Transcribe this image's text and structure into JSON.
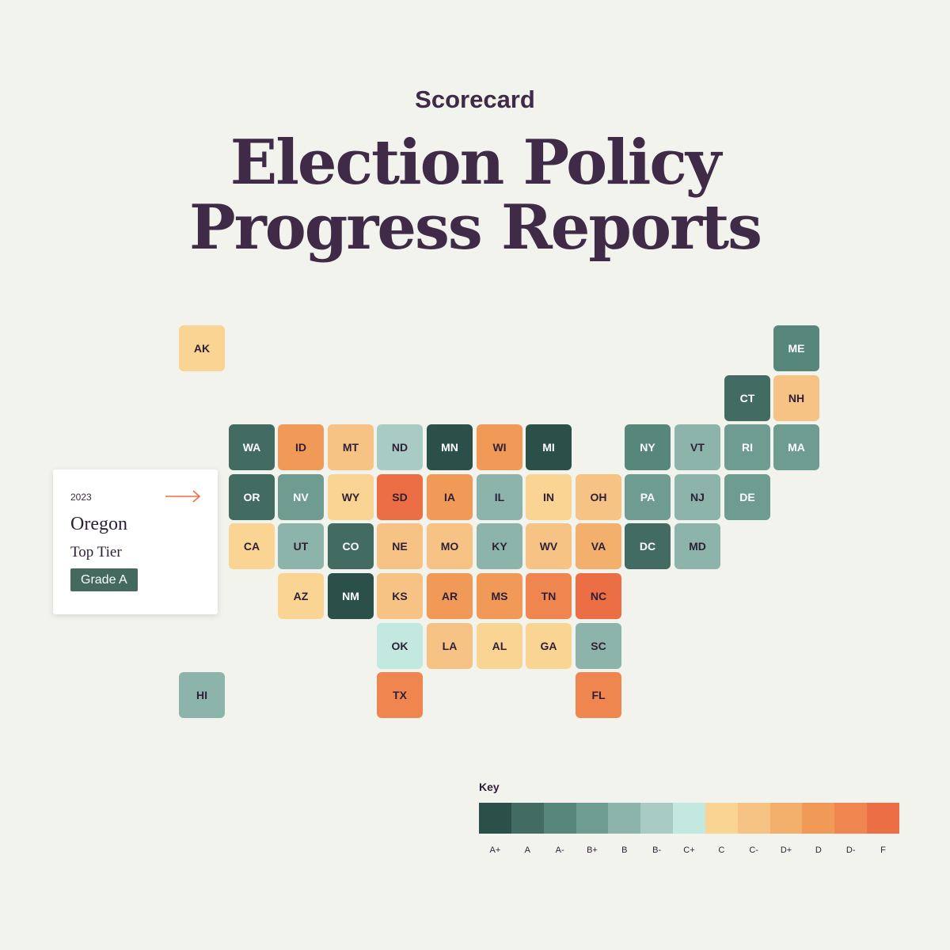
{
  "header": {
    "kicker": "Scorecard",
    "title_line1": "Election Policy",
    "title_line2": "Progress Reports"
  },
  "grade_colors": {
    "A+": "#2a5049",
    "A": "#426c62",
    "A-": "#57867a",
    "B+": "#6f9c90",
    "B": "#8cb4aa",
    "B-": "#a8ccc4",
    "C+": "#c2e8df",
    "C": "#f9d493",
    "C-": "#f6c384",
    "D+": "#f3b06c",
    "D": "#f19a57",
    "D-": "#ef8650",
    "F": "#ec6e45"
  },
  "states": [
    {
      "abbr": "AK",
      "grade": "C",
      "col": 0,
      "row": 0
    },
    {
      "abbr": "ME",
      "grade": "A-",
      "col": 12,
      "row": 0
    },
    {
      "abbr": "CT",
      "grade": "A",
      "col": 11,
      "row": 1
    },
    {
      "abbr": "NH",
      "grade": "C-",
      "col": 12,
      "row": 1
    },
    {
      "abbr": "WA",
      "grade": "A",
      "col": 1,
      "row": 2
    },
    {
      "abbr": "ID",
      "grade": "D",
      "col": 2,
      "row": 2
    },
    {
      "abbr": "MT",
      "grade": "C-",
      "col": 3,
      "row": 2
    },
    {
      "abbr": "ND",
      "grade": "B-",
      "col": 4,
      "row": 2
    },
    {
      "abbr": "MN",
      "grade": "A+",
      "col": 5,
      "row": 2
    },
    {
      "abbr": "WI",
      "grade": "D",
      "col": 6,
      "row": 2
    },
    {
      "abbr": "MI",
      "grade": "A+",
      "col": 7,
      "row": 2
    },
    {
      "abbr": "NY",
      "grade": "A-",
      "col": 9,
      "row": 2
    },
    {
      "abbr": "VT",
      "grade": "B",
      "col": 10,
      "row": 2
    },
    {
      "abbr": "RI",
      "grade": "B+",
      "col": 11,
      "row": 2
    },
    {
      "abbr": "MA",
      "grade": "B+",
      "col": 12,
      "row": 2
    },
    {
      "abbr": "OR",
      "grade": "A",
      "col": 1,
      "row": 3
    },
    {
      "abbr": "NV",
      "grade": "B+",
      "col": 2,
      "row": 3
    },
    {
      "abbr": "WY",
      "grade": "C",
      "col": 3,
      "row": 3
    },
    {
      "abbr": "SD",
      "grade": "F",
      "col": 4,
      "row": 3
    },
    {
      "abbr": "IA",
      "grade": "D",
      "col": 5,
      "row": 3
    },
    {
      "abbr": "IL",
      "grade": "B",
      "col": 6,
      "row": 3
    },
    {
      "abbr": "IN",
      "grade": "C",
      "col": 7,
      "row": 3
    },
    {
      "abbr": "OH",
      "grade": "C-",
      "col": 8,
      "row": 3
    },
    {
      "abbr": "PA",
      "grade": "B+",
      "col": 9,
      "row": 3
    },
    {
      "abbr": "NJ",
      "grade": "B",
      "col": 10,
      "row": 3
    },
    {
      "abbr": "DE",
      "grade": "B+",
      "col": 11,
      "row": 3
    },
    {
      "abbr": "CA",
      "grade": "C",
      "col": 1,
      "row": 4
    },
    {
      "abbr": "UT",
      "grade": "B",
      "col": 2,
      "row": 4
    },
    {
      "abbr": "CO",
      "grade": "A",
      "col": 3,
      "row": 4
    },
    {
      "abbr": "NE",
      "grade": "C-",
      "col": 4,
      "row": 4
    },
    {
      "abbr": "MO",
      "grade": "C-",
      "col": 5,
      "row": 4
    },
    {
      "abbr": "KY",
      "grade": "B",
      "col": 6,
      "row": 4
    },
    {
      "abbr": "WV",
      "grade": "C-",
      "col": 7,
      "row": 4
    },
    {
      "abbr": "VA",
      "grade": "D+",
      "col": 8,
      "row": 4
    },
    {
      "abbr": "DC",
      "grade": "A",
      "col": 9,
      "row": 4
    },
    {
      "abbr": "MD",
      "grade": "B",
      "col": 10,
      "row": 4
    },
    {
      "abbr": "AZ",
      "grade": "C",
      "col": 2,
      "row": 5
    },
    {
      "abbr": "NM",
      "grade": "A+",
      "col": 3,
      "row": 5
    },
    {
      "abbr": "KS",
      "grade": "C-",
      "col": 4,
      "row": 5
    },
    {
      "abbr": "AR",
      "grade": "D",
      "col": 5,
      "row": 5
    },
    {
      "abbr": "MS",
      "grade": "D",
      "col": 6,
      "row": 5
    },
    {
      "abbr": "TN",
      "grade": "D-",
      "col": 7,
      "row": 5
    },
    {
      "abbr": "NC",
      "grade": "F",
      "col": 8,
      "row": 5
    },
    {
      "abbr": "OK",
      "grade": "C+",
      "col": 4,
      "row": 6
    },
    {
      "abbr": "LA",
      "grade": "C-",
      "col": 5,
      "row": 6
    },
    {
      "abbr": "AL",
      "grade": "C",
      "col": 6,
      "row": 6
    },
    {
      "abbr": "GA",
      "grade": "C",
      "col": 7,
      "row": 6
    },
    {
      "abbr": "SC",
      "grade": "B",
      "col": 8,
      "row": 6
    },
    {
      "abbr": "HI",
      "grade": "B",
      "col": 0,
      "row": 7
    },
    {
      "abbr": "TX",
      "grade": "D-",
      "col": 4,
      "row": 7
    },
    {
      "abbr": "FL",
      "grade": "D-",
      "col": 8,
      "row": 7
    }
  ],
  "detail_card": {
    "year": "2023",
    "state": "Oregon",
    "tier": "Top Tier",
    "grade_label": "Grade A",
    "arrow_icon": "arrow-right-icon"
  },
  "key": {
    "title": "Key",
    "grades": [
      "A+",
      "A",
      "A-",
      "B+",
      "B",
      "B-",
      "C+",
      "C",
      "C-",
      "D+",
      "D",
      "D-",
      "F"
    ]
  }
}
